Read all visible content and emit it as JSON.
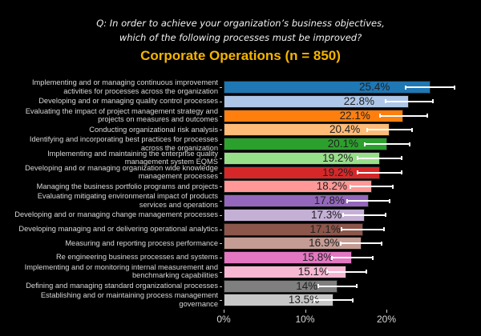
{
  "question": {
    "line1": "Q: In order to achieve your organization’s business objectives,",
    "line2": "which of the following processes must be improved?"
  },
  "chart_data": {
    "type": "bar",
    "orientation": "horizontal",
    "title": "Corporate Operations (n = 850)",
    "xlabel": "",
    "ylabel": "",
    "xlim": [
      0,
      28
    ],
    "xticks": [
      "0%",
      "10%",
      "20%"
    ],
    "xtick_values": [
      0,
      10,
      20
    ],
    "grid": false,
    "categories": [
      "Implementing and or managing continuous improvement\nactivities for processes across the organization",
      "Developing and or managing quality control processes",
      "Evaluating the impact of project management strategy and\nprojects on measures and outcomes",
      "Conducting organizational risk analysis",
      "Identifying and incorporating best practices for processes\nacross the organization",
      "Implementing and maintaining the enterprise quality\nmanagement system EQMS",
      "Developing and or managing organization wide knowledge\nmanagement processes",
      "Managing the business portfolio programs and projects",
      "Evaluating mitigating environmental impact of products\nservices and operations",
      "Developing and or managing change management processes",
      "Developing managing and or delivering operational analytics",
      "Measuring and reporting process performance",
      "Re engineering business processes and systems",
      "Implementing and or monitoring internal measurement and\nbenchmarking capabilities",
      "Defining and managing standard organizational processes",
      "Establishing and or maintaining process management\ngovernance"
    ],
    "values": [
      25.4,
      22.8,
      22.1,
      20.4,
      20.1,
      19.2,
      19.2,
      18.2,
      17.8,
      17.3,
      17.1,
      16.9,
      15.8,
      15.1,
      14,
      13.5
    ],
    "value_labels": [
      "25.4%",
      "22.8%",
      "22.1%",
      "20.4%",
      "20.1%",
      "19.2%",
      "19.2%",
      "18.2%",
      "17.8%",
      "17.3%",
      "17.1%",
      "16.9%",
      "15.8%",
      "15.1%",
      "14%",
      "13.5%"
    ],
    "error": [
      3.0,
      2.9,
      2.9,
      2.8,
      2.8,
      2.7,
      2.7,
      2.6,
      2.6,
      2.6,
      2.6,
      2.5,
      2.5,
      2.4,
      2.4,
      2.4
    ],
    "colors": [
      "#1f77b4",
      "#aec7e8",
      "#ff7f0e",
      "#ffbb78",
      "#2ca02c",
      "#98df8a",
      "#d62728",
      "#ff9896",
      "#9467bd",
      "#c5b0d5",
      "#8c564b",
      "#c49c94",
      "#e377c2",
      "#f7b6d2",
      "#7f7f7f",
      "#c7c7c7"
    ],
    "title_color": "#f5b400",
    "background": "#000000"
  }
}
